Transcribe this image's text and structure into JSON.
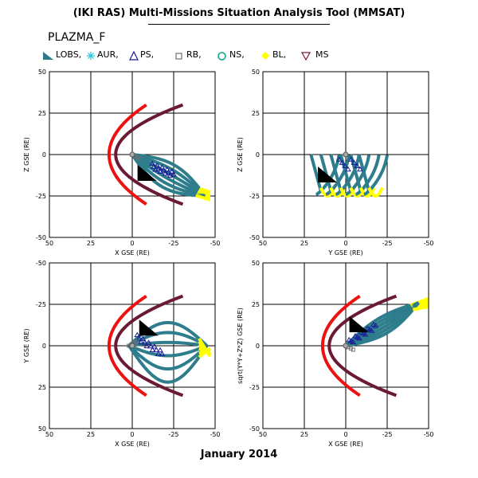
{
  "app_title": "(IKI RAS) Multi-Missions Situation Analysis Tool (MMSAT)",
  "dataset": "PLAZMA_F",
  "period": "January 2014",
  "legend": [
    {
      "symbol": "triangle-filled",
      "label": "LOBS,",
      "color": "#2f7a8a"
    },
    {
      "symbol": "asterisk",
      "label": "AUR,",
      "color": "#20c8e0"
    },
    {
      "symbol": "triangle-open",
      "label": "PS,",
      "color": "#1a1a9a"
    },
    {
      "symbol": "square-open",
      "label": "RB,",
      "color": "#707070"
    },
    {
      "symbol": "circle-open",
      "label": "NS,",
      "color": "#10a088"
    },
    {
      "symbol": "diamond",
      "label": "BL,",
      "color": "#ffff00"
    },
    {
      "symbol": "triangle-down-open",
      "label": "MS",
      "color": "#7a1a3a"
    }
  ],
  "colors": {
    "bow_shock": "#ee1111",
    "magnetopause": "#6a1a33",
    "orbit_main": "#2e7d8c",
    "orbit_bl": "#ffff00",
    "ps_points": "#1a1a9a",
    "spacecraft": "#000000"
  },
  "chart_data": [
    {
      "type": "scatter",
      "title": "",
      "xlabel": "X GSE (RE)",
      "ylabel": "Z GSE (RE)",
      "xlim": [
        50,
        -50
      ],
      "ylim": [
        -50,
        50
      ],
      "xticks": [
        "50",
        "25",
        "0",
        "-25",
        "-50"
      ],
      "yticks": [
        "-50",
        "-25",
        "0",
        "25",
        "50"
      ],
      "grid": true,
      "boundaries": true,
      "orbit": {
        "leg_start": [
          0,
          0
        ],
        "leg_end": [
          -44,
          -25
        ],
        "arcs": [
          -7,
          -4,
          -1,
          2,
          5,
          8
        ],
        "bl_end": [
          -47,
          -25
        ],
        "ps_region": [
          [
            -12,
            -7
          ],
          [
            -25,
            -12
          ]
        ]
      },
      "spacecraft": {
        "x": -8,
        "y": -12
      }
    },
    {
      "type": "scatter",
      "title": "",
      "xlabel": "Y GSE (RE)",
      "ylabel": "Z GSE (RE)",
      "xlim": [
        50,
        -50
      ],
      "ylim": [
        -50,
        50
      ],
      "xticks": [
        "50",
        "25",
        "0",
        "-25",
        "-50"
      ],
      "yticks": [
        "-50",
        "-25",
        "0",
        "25",
        "50"
      ],
      "grid": true,
      "boundaries": false,
      "loops": {
        "x_centers": [
          11,
          5,
          -1,
          -7,
          -13,
          -18
        ],
        "y_top": 0,
        "y_bottom": -24,
        "half_width": 4
      },
      "spacecraft": {
        "x": 12,
        "y": -13
      }
    },
    {
      "type": "scatter",
      "title": "",
      "xlabel": "X GSE (RE)",
      "ylabel": "Y GSE (RE)",
      "xlim": [
        50,
        -50
      ],
      "ylim": [
        50,
        -50
      ],
      "xticks": [
        "50",
        "25",
        "0",
        "-25",
        "-50"
      ],
      "yticks": [
        "-50",
        "-25",
        "0",
        "25",
        "50"
      ],
      "grid": true,
      "boundaries": true,
      "orbit": {
        "leg_start": [
          2,
          0
        ],
        "leg_end": [
          -45,
          0
        ],
        "arcs": [
          -22,
          -14,
          -6,
          2,
          8,
          14
        ],
        "bl_end": [
          -47,
          4
        ],
        "ps_region": [
          [
            -3,
            -5
          ],
          [
            -18,
            5
          ]
        ]
      },
      "spacecraft": {
        "x": -9,
        "y": -10
      }
    },
    {
      "type": "scatter",
      "title": "",
      "xlabel": "X GSE (RE)",
      "ylabel": "sqrt(Y*Y+Z*Z) GSE (RE)",
      "xlim": [
        50,
        -50
      ],
      "ylim": [
        -50,
        50
      ],
      "xticks": [
        "50",
        "25",
        "0",
        "-25",
        "-50"
      ],
      "yticks": [
        "-50",
        "-25",
        "0",
        "25",
        "50"
      ],
      "grid": true,
      "boundaries": true,
      "orbit": {
        "leg_start": [
          0,
          0
        ],
        "leg_end": [
          -44,
          26
        ],
        "arcs": [
          -4,
          -2,
          0,
          2,
          4,
          6
        ],
        "bl_end": [
          -50,
          26
        ],
        "ps_region": [
          [
            -2,
            2
          ],
          [
            -18,
            12
          ]
        ]
      },
      "spacecraft": {
        "x": -7,
        "y": 12
      }
    }
  ]
}
